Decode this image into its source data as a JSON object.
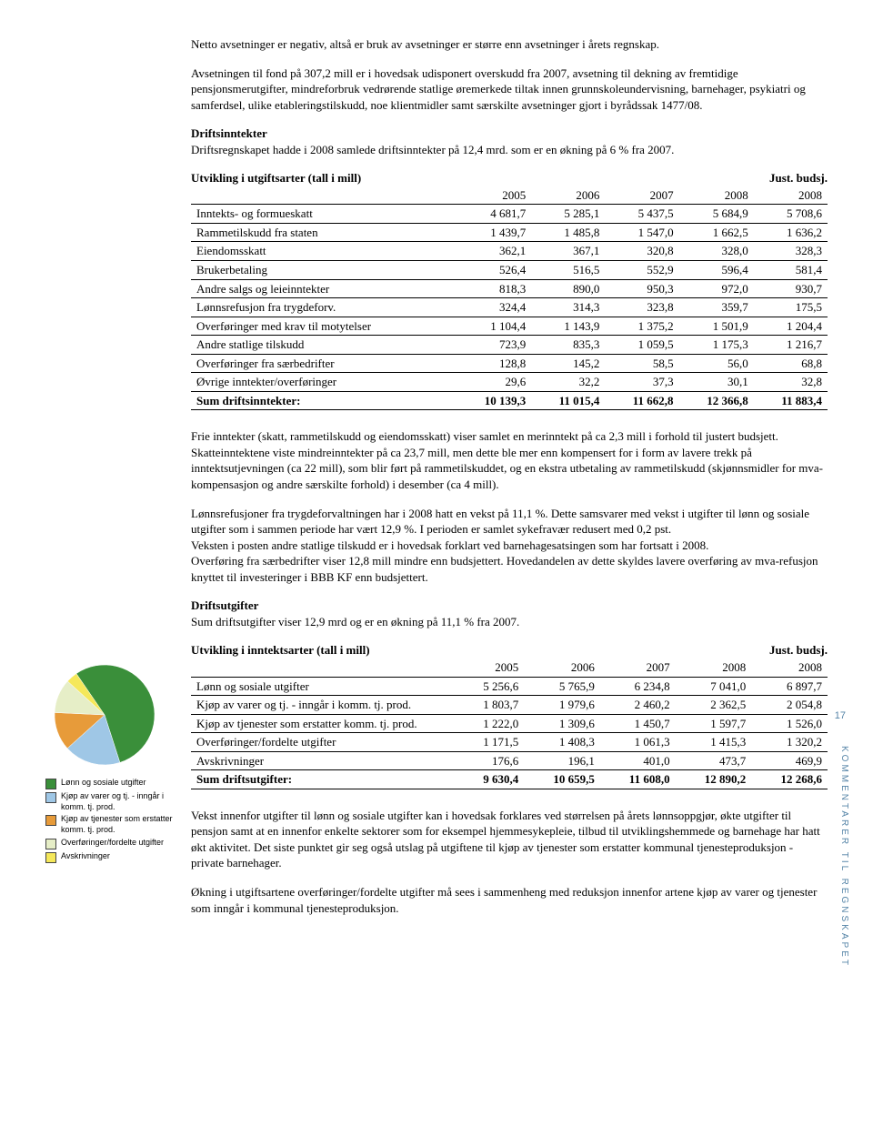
{
  "page_number": "17",
  "vertical_label": "KOMMENTARER TIL REGNSKAPET",
  "p1": "Netto avsetninger er negativ, altså er bruk av avsetninger er større enn avsetninger i årets regnskap.",
  "p2": "Avsetningen til fond på 307,2 mill er i hovedsak udisponert overskudd fra 2007, avsetning til dekning av fremtidige pensjonsmerutgifter, mindreforbruk vedrørende statlige øremerkede tiltak innen grunnskoleundervisning, barnehager, psykiatri og samferdsel, ulike etableringstilskudd, noe klientmidler samt særskilte avsetninger gjort i byrådssak 1477/08.",
  "h1": "Driftsinntekter",
  "p3": "Driftsregnskapet hadde i 2008 samlede driftsinntekter på 12,4 mrd. som er en økning på 6 % fra 2007.",
  "table1": {
    "title": "Utvikling i utgiftsarter (tall i mill)",
    "just_label": "Just. budsj.",
    "years": [
      "2005",
      "2006",
      "2007",
      "2008",
      "2008"
    ],
    "rows": [
      {
        "label": "Inntekts- og formueskatt",
        "v": [
          "4 681,7",
          "5 285,1",
          "5 437,5",
          "5 684,9",
          "5 708,6"
        ]
      },
      {
        "label": "Rammetilskudd fra staten",
        "v": [
          "1 439,7",
          "1 485,8",
          "1 547,0",
          "1 662,5",
          "1 636,2"
        ]
      },
      {
        "label": "Eiendomsskatt",
        "v": [
          "362,1",
          "367,1",
          "320,8",
          "328,0",
          "328,3"
        ]
      },
      {
        "label": "Brukerbetaling",
        "v": [
          "526,4",
          "516,5",
          "552,9",
          "596,4",
          "581,4"
        ]
      },
      {
        "label": "Andre salgs og leieinntekter",
        "v": [
          "818,3",
          "890,0",
          "950,3",
          "972,0",
          "930,7"
        ]
      },
      {
        "label": "Lønnsrefusjon fra trygdeforv.",
        "v": [
          "324,4",
          "314,3",
          "323,8",
          "359,7",
          "175,5"
        ]
      },
      {
        "label": "Overføringer med krav til motytelser",
        "v": [
          "1 104,4",
          "1 143,9",
          "1 375,2",
          "1 501,9",
          "1 204,4"
        ]
      },
      {
        "label": "Andre statlige tilskudd",
        "v": [
          "723,9",
          "835,3",
          "1 059,5",
          "1 175,3",
          "1 216,7"
        ]
      },
      {
        "label": "Overføringer fra særbedrifter",
        "v": [
          "128,8",
          "145,2",
          "58,5",
          "56,0",
          "68,8"
        ]
      },
      {
        "label": "Øvrige inntekter/overføringer",
        "v": [
          "29,6",
          "32,2",
          "37,3",
          "30,1",
          "32,8"
        ]
      }
    ],
    "sum": {
      "label": "Sum driftsinntekter:",
      "v": [
        "10 139,3",
        "11 015,4",
        "11 662,8",
        "12 366,8",
        "11 883,4"
      ]
    }
  },
  "p4": "Frie inntekter (skatt, rammetilskudd og eiendomsskatt) viser samlet en merinntekt på ca 2,3 mill i forhold til justert budsjett. Skatteinntektene viste mindreinntekter på ca 23,7 mill, men dette ble mer enn kompensert for i form av lavere trekk på inntektsutjevningen (ca 22 mill), som blir ført på rammetilskuddet, og en ekstra utbetaling av rammetilskudd (skjønnsmidler for mva-kompensasjon og andre særskilte forhold) i desember (ca 4 mill).",
  "p5": "Lønnsrefusjoner fra trygdeforvaltningen har i 2008 hatt en vekst på 11,1 %. Dette samsvarer med vekst i utgifter til lønn og sosiale utgifter som i sammen periode har vært 12,9 %. I perioden er samlet sykefravær redusert med 0,2 pst.",
  "p6": "Veksten i posten andre statlige tilskudd er i hovedsak forklart ved barnehagesatsingen som har fortsatt i 2008.",
  "p7": "Overføring fra særbedrifter viser 12,8 mill mindre enn budsjettert. Hovedandelen av dette skyldes lavere overføring av mva-refusjon knyttet til investeringer i BBB KF enn budsjettert.",
  "h2": "Driftsutgifter",
  "p8": "Sum driftsutgifter viser 12,9 mrd og er en økning på 11,1 % fra 2007.",
  "table2": {
    "title": "Utvikling i inntektsarter (tall i mill)",
    "just_label": "Just. budsj.",
    "years": [
      "2005",
      "2006",
      "2007",
      "2008",
      "2008"
    ],
    "rows": [
      {
        "label": "Lønn og sosiale utgifter",
        "v": [
          "5 256,6",
          "5 765,9",
          "6 234,8",
          "7 041,0",
          "6 897,7"
        ]
      },
      {
        "label": "Kjøp av varer og tj. - inngår i komm. tj. prod.",
        "v": [
          "1 803,7",
          "1 979,6",
          "2 460,2",
          "2 362,5",
          "2 054,8"
        ]
      },
      {
        "label": "Kjøp av tjenester som erstatter komm. tj. prod.",
        "v": [
          "1 222,0",
          "1 309,6",
          "1 450,7",
          "1 597,7",
          "1 526,0"
        ]
      },
      {
        "label": "Overføringer/fordelte utgifter",
        "v": [
          "1 171,5",
          "1 408,3",
          "1 061,3",
          "1 415,3",
          "1 320,2"
        ]
      },
      {
        "label": "Avskrivninger",
        "v": [
          "176,6",
          "196,1",
          "401,0",
          "473,7",
          "469,9"
        ]
      }
    ],
    "sum": {
      "label": "Sum driftsutgifter:",
      "v": [
        "9 630,4",
        "10 659,5",
        "11 608,0",
        "12 890,2",
        "12 268,6"
      ]
    }
  },
  "p9": "Vekst innenfor utgifter til lønn og sosiale utgifter kan i hovedsak forklares ved størrelsen på årets lønnsoppgjør, økte utgifter til pensjon samt at en innenfor enkelte sektorer som for eksempel hjemmesykepleie, tilbud til utviklingshemmede og barnehage har hatt økt aktivitet. Det siste punktet gir seg også utslag på utgiftene til kjøp av tjenester som erstatter kommunal tjenesteproduksjon - private barnehager.",
  "p10": "Økning i utgiftsartene overføringer/fordelte utgifter må sees i sammenheng med reduksjon innenfor artene kjøp av varer og tjenester som inngår i kommunal tjenesteproduksjon.",
  "pie": {
    "type": "pie",
    "values": [
      54.6,
      18.3,
      12.4,
      11.0,
      3.7
    ],
    "colors": [
      "#3a8f3a",
      "#9fc7e6",
      "#e79b3a",
      "#e6eec7",
      "#f5e85a"
    ],
    "background_color": "#ffffff",
    "radius": 55
  },
  "legend": [
    {
      "color": "#3a8f3a",
      "label": "Lønn og sosiale utgifter"
    },
    {
      "color": "#9fc7e6",
      "label": "Kjøp av varer og tj. - inngår i komm. tj. prod."
    },
    {
      "color": "#e79b3a",
      "label": "Kjøp av tjenester som erstatter komm. tj. prod."
    },
    {
      "color": "#e6eec7",
      "label": "Overføringer/fordelte utgifter"
    },
    {
      "color": "#f5e85a",
      "label": "Avskrivninger"
    }
  ]
}
